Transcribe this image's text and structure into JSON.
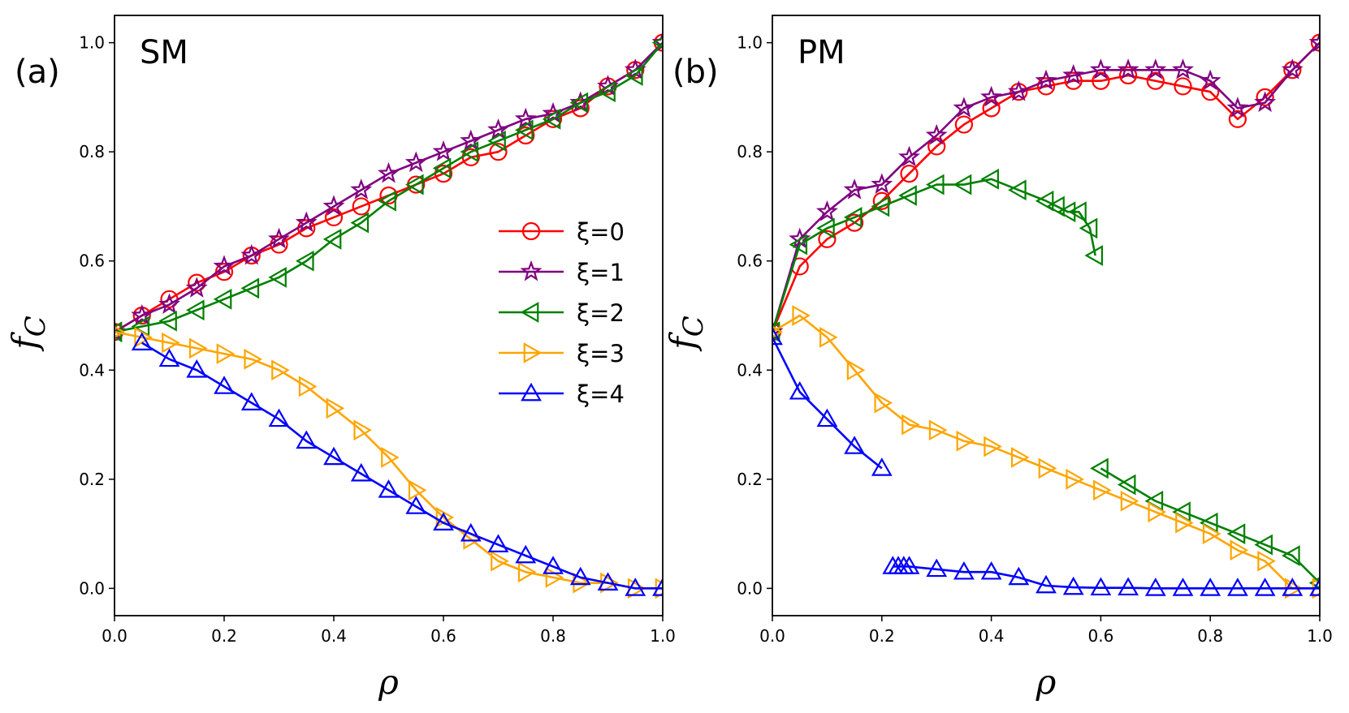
{
  "chart_data": [
    {
      "type": "line",
      "panel_label": "(a)",
      "title": "SM",
      "xlabel": "ρ",
      "ylabel": "f",
      "ylabel_sub": "C",
      "xlim": [
        0,
        1
      ],
      "ylim": [
        -0.05,
        1.05
      ],
      "xticks": [
        "0.0",
        "0.2",
        "0.4",
        "0.6",
        "0.8",
        "1.0"
      ],
      "yticks": [
        "0.0",
        "0.2",
        "0.4",
        "0.6",
        "0.8",
        "1.0"
      ],
      "legend": {
        "location": "center-right",
        "entries": [
          {
            "label": "ξ=0",
            "series": 0
          },
          {
            "label": "ξ=1",
            "series": 1
          },
          {
            "label": "ξ=2",
            "series": 2
          },
          {
            "label": "ξ=3",
            "series": 3
          },
          {
            "label": "ξ=4",
            "series": 4
          }
        ]
      },
      "series": [
        {
          "name": "ξ=0",
          "color": "#ff0000",
          "marker": "circle",
          "x": [
            0,
            0.05,
            0.1,
            0.15,
            0.2,
            0.25,
            0.3,
            0.35,
            0.4,
            0.45,
            0.5,
            0.55,
            0.6,
            0.65,
            0.7,
            0.75,
            0.8,
            0.85,
            0.9,
            0.95,
            1.0
          ],
          "y": [
            0.47,
            0.5,
            0.53,
            0.56,
            0.58,
            0.61,
            0.63,
            0.66,
            0.68,
            0.7,
            0.72,
            0.74,
            0.76,
            0.79,
            0.8,
            0.83,
            0.86,
            0.88,
            0.92,
            0.95,
            1.0
          ]
        },
        {
          "name": "ξ=1",
          "color": "#800080",
          "marker": "star",
          "x": [
            0,
            0.05,
            0.1,
            0.15,
            0.2,
            0.25,
            0.3,
            0.35,
            0.4,
            0.45,
            0.5,
            0.55,
            0.6,
            0.65,
            0.7,
            0.75,
            0.8,
            0.85,
            0.9,
            0.95,
            1.0
          ],
          "y": [
            0.47,
            0.5,
            0.52,
            0.55,
            0.59,
            0.61,
            0.64,
            0.67,
            0.7,
            0.73,
            0.76,
            0.78,
            0.8,
            0.82,
            0.84,
            0.86,
            0.87,
            0.89,
            0.92,
            0.95,
            1.0
          ]
        },
        {
          "name": "ξ=2",
          "color": "#008000",
          "marker": "triangle-left",
          "x": [
            0,
            0.05,
            0.1,
            0.15,
            0.2,
            0.25,
            0.3,
            0.35,
            0.4,
            0.45,
            0.5,
            0.55,
            0.6,
            0.65,
            0.7,
            0.75,
            0.8,
            0.85,
            0.9,
            0.95,
            1.0
          ],
          "y": [
            0.47,
            0.48,
            0.49,
            0.51,
            0.53,
            0.55,
            0.57,
            0.6,
            0.64,
            0.67,
            0.71,
            0.74,
            0.77,
            0.8,
            0.82,
            0.84,
            0.86,
            0.89,
            0.91,
            0.94,
            1.0
          ]
        },
        {
          "name": "ξ=3",
          "color": "#ffa500",
          "marker": "triangle-right",
          "x": [
            0,
            0.05,
            0.1,
            0.15,
            0.2,
            0.25,
            0.3,
            0.35,
            0.4,
            0.45,
            0.5,
            0.55,
            0.6,
            0.65,
            0.7,
            0.75,
            0.8,
            0.85,
            0.9,
            0.95,
            1.0
          ],
          "y": [
            0.47,
            0.46,
            0.45,
            0.44,
            0.43,
            0.42,
            0.4,
            0.37,
            0.33,
            0.29,
            0.24,
            0.18,
            0.13,
            0.09,
            0.05,
            0.03,
            0.02,
            0.01,
            0.01,
            0.0,
            0.0
          ]
        },
        {
          "name": "ξ=4",
          "color": "#0000ff",
          "marker": "triangle-up",
          "x": [
            0.05,
            0.1,
            0.15,
            0.2,
            0.25,
            0.3,
            0.35,
            0.4,
            0.45,
            0.5,
            0.55,
            0.6,
            0.65,
            0.7,
            0.75,
            0.8,
            0.85,
            0.9,
            0.95,
            1.0
          ],
          "y": [
            0.45,
            0.42,
            0.4,
            0.37,
            0.34,
            0.31,
            0.27,
            0.24,
            0.21,
            0.18,
            0.15,
            0.12,
            0.1,
            0.08,
            0.06,
            0.04,
            0.02,
            0.01,
            0.0,
            0.0
          ]
        }
      ]
    },
    {
      "type": "line",
      "panel_label": "(b)",
      "title": "PM",
      "xlabel": "ρ",
      "ylabel": "f",
      "ylabel_sub": "C",
      "xlim": [
        0,
        1
      ],
      "ylim": [
        -0.05,
        1.05
      ],
      "xticks": [
        "0.0",
        "0.2",
        "0.4",
        "0.6",
        "0.8",
        "1.0"
      ],
      "yticks": [
        "0.0",
        "0.2",
        "0.4",
        "0.6",
        "0.8",
        "1.0"
      ],
      "series": [
        {
          "name": "ξ=0",
          "color": "#ff0000",
          "marker": "circle",
          "x": [
            0,
            0.05,
            0.1,
            0.15,
            0.2,
            0.25,
            0.3,
            0.35,
            0.4,
            0.45,
            0.5,
            0.55,
            0.6,
            0.65,
            0.7,
            0.75,
            0.8,
            0.85,
            0.9,
            0.95,
            1.0
          ],
          "y": [
            0.47,
            0.59,
            0.64,
            0.67,
            0.71,
            0.76,
            0.81,
            0.85,
            0.88,
            0.91,
            0.92,
            0.93,
            0.93,
            0.94,
            0.93,
            0.92,
            0.91,
            0.86,
            0.9,
            0.95,
            1.0
          ]
        },
        {
          "name": "ξ=1",
          "color": "#800080",
          "marker": "star",
          "x": [
            0,
            0.05,
            0.1,
            0.15,
            0.2,
            0.25,
            0.3,
            0.35,
            0.4,
            0.45,
            0.5,
            0.55,
            0.6,
            0.65,
            0.7,
            0.75,
            0.8,
            0.85,
            0.9,
            0.95,
            1.0
          ],
          "y": [
            0.47,
            0.64,
            0.69,
            0.73,
            0.74,
            0.79,
            0.83,
            0.88,
            0.9,
            0.91,
            0.93,
            0.94,
            0.95,
            0.95,
            0.95,
            0.95,
            0.93,
            0.88,
            0.89,
            0.95,
            1.0
          ]
        },
        {
          "name": "ξ=2",
          "color": "#008000",
          "marker": "triangle-left",
          "x": [
            0,
            0.05,
            0.1,
            0.15,
            0.2,
            0.25,
            0.3,
            0.35,
            0.4,
            0.45,
            0.5,
            0.52,
            0.54,
            0.56,
            0.58,
            0.59
          ],
          "y": [
            0.47,
            0.63,
            0.66,
            0.68,
            0.7,
            0.72,
            0.74,
            0.74,
            0.75,
            0.73,
            0.71,
            0.7,
            0.69,
            0.69,
            0.66,
            0.61
          ]
        },
        {
          "name": "ξ=2",
          "color": "#008000",
          "marker": "triangle-left",
          "x": [
            0.6,
            0.65,
            0.7,
            0.75,
            0.8,
            0.85,
            0.9,
            0.95,
            1.0
          ],
          "y": [
            0.22,
            0.19,
            0.16,
            0.14,
            0.12,
            0.1,
            0.08,
            0.06,
            0.01
          ]
        },
        {
          "name": "ξ=3",
          "color": "#ffa500",
          "marker": "triangle-right",
          "x": [
            0,
            0.05,
            0.1,
            0.15,
            0.2,
            0.25,
            0.3,
            0.35,
            0.4,
            0.45,
            0.5,
            0.55,
            0.6,
            0.65,
            0.7,
            0.75,
            0.8,
            0.85,
            0.9,
            0.95,
            1.0
          ],
          "y": [
            0.47,
            0.5,
            0.46,
            0.4,
            0.34,
            0.3,
            0.29,
            0.27,
            0.26,
            0.24,
            0.22,
            0.2,
            0.18,
            0.16,
            0.14,
            0.12,
            0.1,
            0.07,
            0.05,
            0.0,
            0.0
          ]
        },
        {
          "name": "ξ=4",
          "color": "#0000ff",
          "marker": "triangle-up",
          "x": [
            0,
            0.05,
            0.1,
            0.15,
            0.2
          ],
          "y": [
            0.46,
            0.36,
            0.31,
            0.26,
            0.22
          ]
        },
        {
          "name": "ξ=4",
          "color": "#0000ff",
          "marker": "triangle-up",
          "x": [
            0.22,
            0.23,
            0.24,
            0.25,
            0.3,
            0.35,
            0.4,
            0.45,
            0.5,
            0.55,
            0.6,
            0.65,
            0.7,
            0.75,
            0.8,
            0.85,
            0.9,
            0.95,
            1.0
          ],
          "y": [
            0.04,
            0.04,
            0.04,
            0.04,
            0.035,
            0.03,
            0.03,
            0.02,
            0.005,
            0.002,
            0.001,
            0.001,
            0.0,
            0.0,
            0.0,
            0.0,
            0.0,
            0.0,
            0.0
          ]
        }
      ]
    }
  ]
}
